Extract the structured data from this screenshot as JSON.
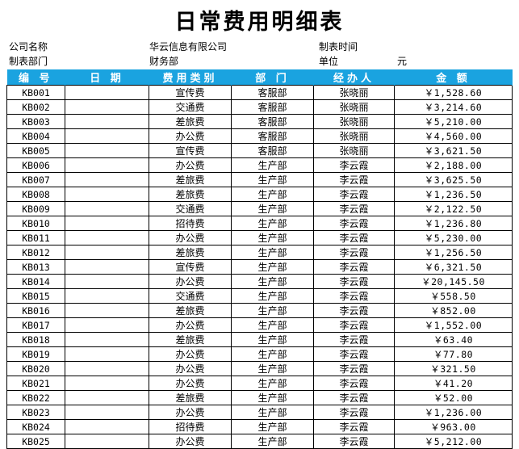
{
  "title": "日常费用明细表",
  "meta": {
    "company_label": "公司名称",
    "company_value": "华云信息有限公司",
    "made_time_label": "制表时间",
    "dept_label": "制表部门",
    "dept_value": "财务部",
    "unit_label": "单位",
    "unit_value": "元"
  },
  "table": {
    "headers": [
      "编 号",
      "日 期",
      "费用类别",
      "部 门",
      "经办人",
      "金 额"
    ],
    "rows": [
      [
        "KB001",
        "",
        "宣传费",
        "客服部",
        "张晓丽",
        "￥1,528.60"
      ],
      [
        "KB002",
        "",
        "交通费",
        "客服部",
        "张晓丽",
        "￥3,214.60"
      ],
      [
        "KB003",
        "",
        "差旅费",
        "客服部",
        "张晓丽",
        "￥5,210.00"
      ],
      [
        "KB004",
        "",
        "办公费",
        "客服部",
        "张晓丽",
        "￥4,560.00"
      ],
      [
        "KB005",
        "",
        "宣传费",
        "客服部",
        "张晓丽",
        "￥3,621.50"
      ],
      [
        "KB006",
        "",
        "办公费",
        "生产部",
        "李云霞",
        "￥2,188.00"
      ],
      [
        "KB007",
        "",
        "差旅费",
        "生产部",
        "李云霞",
        "￥3,625.50"
      ],
      [
        "KB008",
        "",
        "差旅费",
        "生产部",
        "李云霞",
        "￥1,236.50"
      ],
      [
        "KB009",
        "",
        "交通费",
        "生产部",
        "李云霞",
        "￥2,122.50"
      ],
      [
        "KB010",
        "",
        "招待费",
        "生产部",
        "李云霞",
        "￥1,236.80"
      ],
      [
        "KB011",
        "",
        "办公费",
        "生产部",
        "李云霞",
        "￥5,230.00"
      ],
      [
        "KB012",
        "",
        "差旅费",
        "生产部",
        "李云霞",
        "￥1,256.50"
      ],
      [
        "KB013",
        "",
        "宣传费",
        "生产部",
        "李云霞",
        "￥6,321.50"
      ],
      [
        "KB014",
        "",
        "办公费",
        "生产部",
        "李云霞",
        "￥20,145.50"
      ],
      [
        "KB015",
        "",
        "交通费",
        "生产部",
        "李云霞",
        "￥558.50"
      ],
      [
        "KB016",
        "",
        "差旅费",
        "生产部",
        "李云霞",
        "￥852.00"
      ],
      [
        "KB017",
        "",
        "办公费",
        "生产部",
        "李云霞",
        "￥1,552.00"
      ],
      [
        "KB018",
        "",
        "差旅费",
        "生产部",
        "李云霞",
        "￥63.40"
      ],
      [
        "KB019",
        "",
        "办公费",
        "生产部",
        "李云霞",
        "￥77.80"
      ],
      [
        "KB020",
        "",
        "办公费",
        "生产部",
        "李云霞",
        "￥321.50"
      ],
      [
        "KB021",
        "",
        "办公费",
        "生产部",
        "李云霞",
        "￥41.20"
      ],
      [
        "KB022",
        "",
        "差旅费",
        "生产部",
        "李云霞",
        "￥52.00"
      ],
      [
        "KB023",
        "",
        "办公费",
        "生产部",
        "李云霞",
        "￥1,236.00"
      ],
      [
        "KB024",
        "",
        "招待费",
        "生产部",
        "李云霞",
        "￥963.00"
      ],
      [
        "KB025",
        "",
        "办公费",
        "生产部",
        "李云霞",
        "￥5,212.00"
      ]
    ]
  },
  "colors": {
    "header_bg": "#1aa3e0",
    "header_text": "#ffffff",
    "grid": "#000000"
  }
}
